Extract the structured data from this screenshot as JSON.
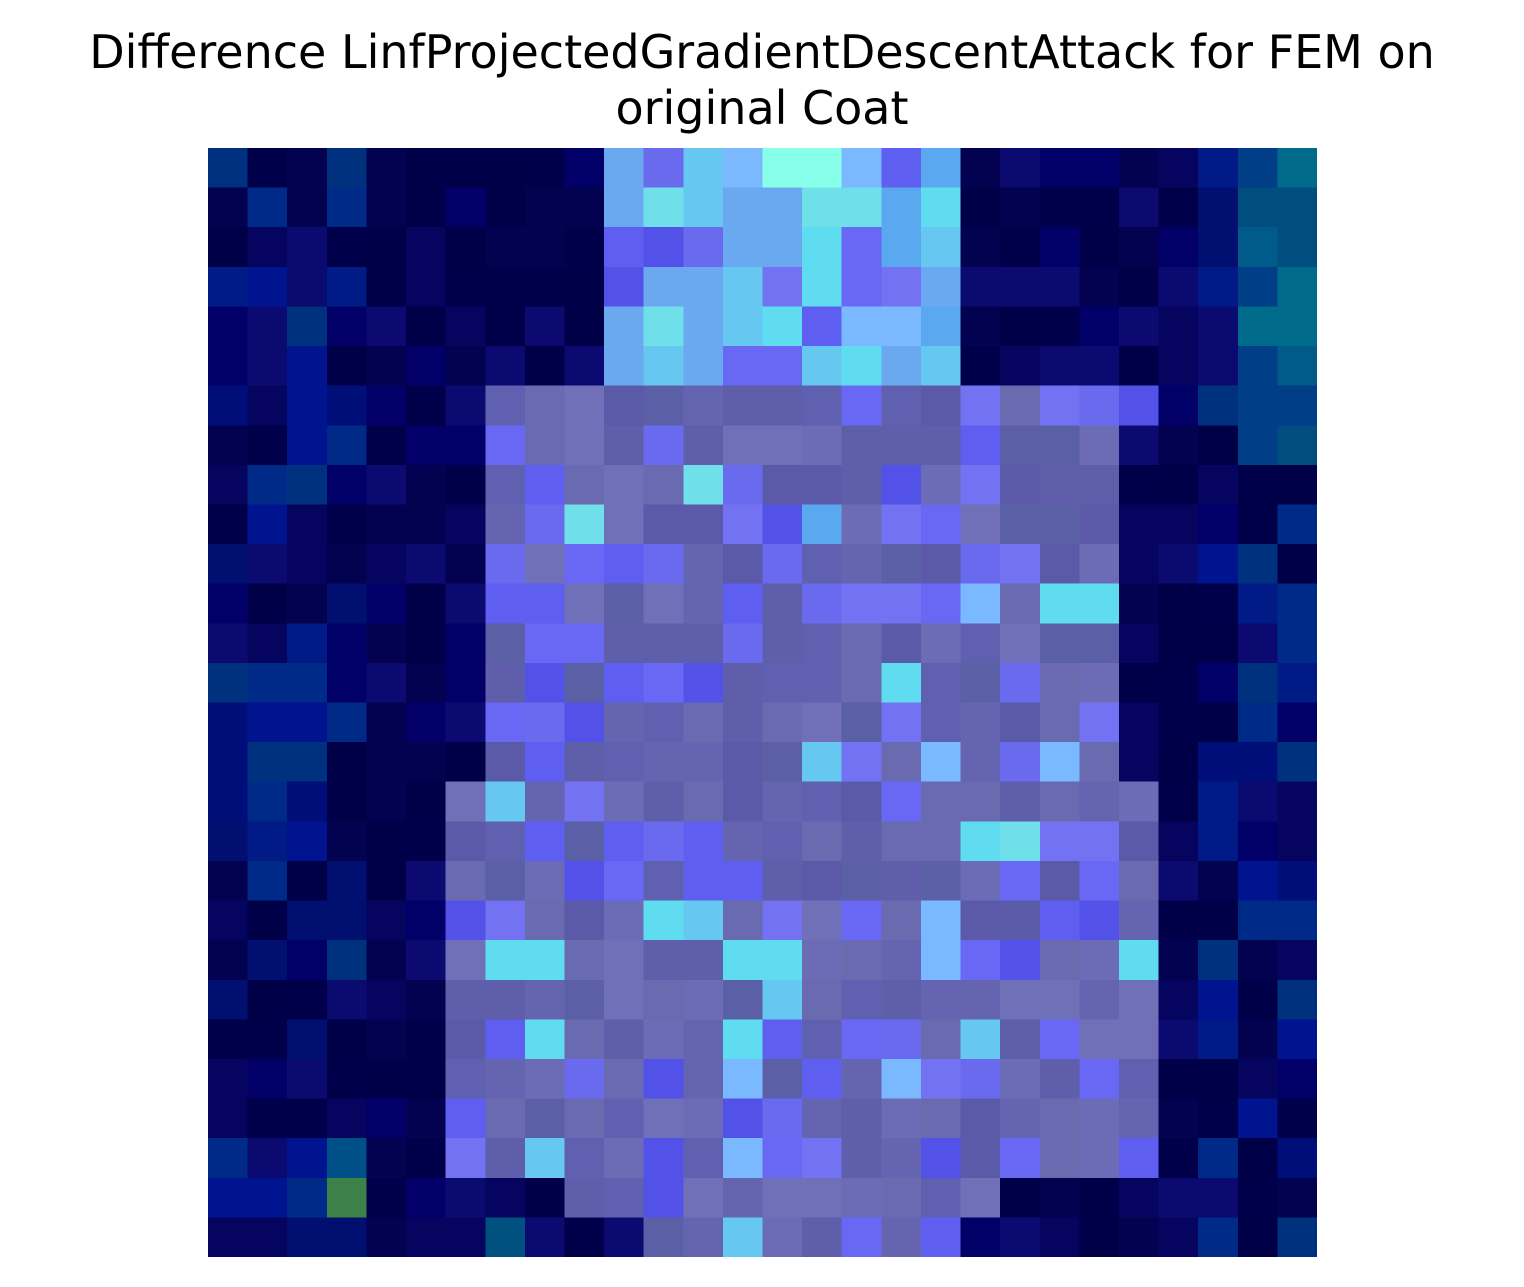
{
  "title": {
    "line1": "Difference LinfProjectedGradientDescentAttack for FEM on",
    "line2": "original Coat"
  }
}
